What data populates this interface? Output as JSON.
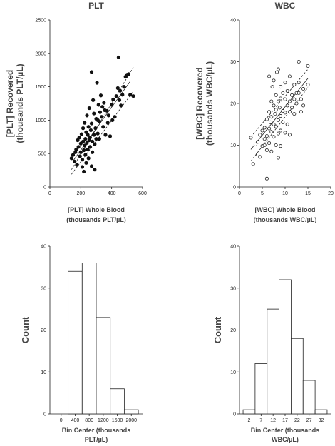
{
  "chart_data": [
    {
      "id": "plt-scatter",
      "type": "scatter",
      "title": "PLT",
      "xlabel": [
        "[PLT]  Whole Blood",
        "(thousands PLT/µL)"
      ],
      "ylabel": [
        "[PLT] Recovered",
        "(thousands PLT/µL)"
      ],
      "xlim": [
        0,
        600
      ],
      "ylim": [
        0,
        2500
      ],
      "xticks": [
        0,
        200,
        400,
        600
      ],
      "yticks": [
        0,
        500,
        1000,
        1500,
        2000,
        2500
      ],
      "marker": "filled",
      "points": [
        [
          140,
          430
        ],
        [
          150,
          480
        ],
        [
          160,
          380
        ],
        [
          165,
          520
        ],
        [
          170,
          560
        ],
        [
          175,
          330
        ],
        [
          180,
          700
        ],
        [
          185,
          600
        ],
        [
          190,
          740
        ],
        [
          195,
          460
        ],
        [
          200,
          650
        ],
        [
          200,
          520
        ],
        [
          205,
          790
        ],
        [
          210,
          410
        ],
        [
          210,
          300
        ],
        [
          215,
          880
        ],
        [
          215,
          680
        ],
        [
          220,
          230
        ],
        [
          220,
          550
        ],
        [
          225,
          620
        ],
        [
          225,
          960
        ],
        [
          230,
          720
        ],
        [
          230,
          480
        ],
        [
          235,
          820
        ],
        [
          235,
          360
        ],
        [
          240,
          660
        ],
        [
          240,
          1070
        ],
        [
          245,
          780
        ],
        [
          245,
          560
        ],
        [
          250,
          900
        ],
        [
          250,
          430
        ],
        [
          255,
          700
        ],
        [
          255,
          1180
        ],
        [
          260,
          740
        ],
        [
          260,
          600
        ],
        [
          265,
          850
        ],
        [
          270,
          310
        ],
        [
          270,
          950
        ],
        [
          275,
          680
        ],
        [
          275,
          520
        ],
        [
          280,
          1300
        ],
        [
          285,
          780
        ],
        [
          285,
          1100
        ],
        [
          290,
          260
        ],
        [
          290,
          640
        ],
        [
          295,
          880
        ],
        [
          300,
          1020
        ],
        [
          300,
          720
        ],
        [
          305,
          1560
        ],
        [
          310,
          800
        ],
        [
          310,
          1000
        ],
        [
          315,
          1230
        ],
        [
          320,
          720
        ],
        [
          320,
          980
        ],
        [
          325,
          1120
        ],
        [
          330,
          1370
        ],
        [
          335,
          1050
        ],
        [
          340,
          1200
        ],
        [
          345,
          900
        ],
        [
          350,
          1260
        ],
        [
          355,
          1150
        ],
        [
          360,
          780
        ],
        [
          370,
          1140
        ],
        [
          375,
          960
        ],
        [
          380,
          1070
        ],
        [
          390,
          760
        ],
        [
          400,
          1230
        ],
        [
          405,
          1000
        ],
        [
          410,
          1310
        ],
        [
          420,
          1050
        ],
        [
          430,
          1360
        ],
        [
          440,
          1480
        ],
        [
          445,
          1940
        ],
        [
          450,
          1300
        ],
        [
          455,
          1440
        ],
        [
          460,
          1220
        ],
        [
          470,
          1380
        ],
        [
          480,
          1500
        ],
        [
          490,
          1650
        ],
        [
          500,
          1680
        ],
        [
          510,
          1690
        ],
        [
          520,
          1380
        ],
        [
          540,
          1360
        ],
        [
          270,
          1720
        ]
      ],
      "fit": {
        "x": [
          150,
          520
        ],
        "y": [
          390,
          1580
        ]
      },
      "ci_upper": {
        "x": [
          140,
          540
        ],
        "y": [
          260,
          1790
        ]
      },
      "ci_lower": {
        "x": [
          140,
          540
        ],
        "y": [
          190,
          1430
        ]
      }
    },
    {
      "id": "wbc-scatter",
      "type": "scatter",
      "title": "WBC",
      "xlabel": [
        "[WBC] Whole Blood",
        "(thousands WBC/µL)"
      ],
      "ylabel": [
        "[WBC] Recovered",
        "(thousands WBC/µL)"
      ],
      "xlim": [
        0,
        20
      ],
      "ylim": [
        0,
        40
      ],
      "xticks": [
        0,
        5,
        10,
        15,
        20
      ],
      "yticks": [
        0,
        10,
        20,
        30,
        40
      ],
      "marker": "open",
      "points": [
        [
          2.5,
          11.8
        ],
        [
          3.0,
          5.5
        ],
        [
          3.5,
          10.2
        ],
        [
          4.0,
          10.8
        ],
        [
          4.0,
          7.8
        ],
        [
          4.5,
          12.5
        ],
        [
          4.5,
          7.2
        ],
        [
          5.0,
          13.5
        ],
        [
          5.0,
          9.8
        ],
        [
          5.5,
          14.2
        ],
        [
          5.5,
          11.5
        ],
        [
          5.5,
          10.0
        ],
        [
          6.0,
          16.2
        ],
        [
          6.0,
          12.2
        ],
        [
          6.0,
          8.8
        ],
        [
          6.0,
          2.0
        ],
        [
          6.5,
          18.0
        ],
        [
          6.5,
          14.0
        ],
        [
          6.5,
          10.5
        ],
        [
          6.5,
          26.5
        ],
        [
          6.8,
          15.5
        ],
        [
          7.0,
          20.5
        ],
        [
          7.0,
          16.8
        ],
        [
          7.0,
          13.2
        ],
        [
          7.0,
          8.5
        ],
        [
          7.2,
          24.0
        ],
        [
          7.5,
          19.5
        ],
        [
          7.5,
          15.0
        ],
        [
          7.5,
          12.0
        ],
        [
          7.5,
          25.5
        ],
        [
          7.8,
          17.5
        ],
        [
          8.0,
          22.0
        ],
        [
          8.0,
          18.5
        ],
        [
          8.0,
          14.5
        ],
        [
          8.0,
          10.0
        ],
        [
          8.2,
          27.5
        ],
        [
          8.5,
          20.5
        ],
        [
          8.5,
          16.0
        ],
        [
          8.5,
          12.8
        ],
        [
          8.5,
          7.0
        ],
        [
          8.5,
          28.2
        ],
        [
          8.8,
          19.0
        ],
        [
          9.0,
          24.0
        ],
        [
          9.0,
          21.2
        ],
        [
          9.0,
          17.0
        ],
        [
          9.0,
          13.5
        ],
        [
          9.0,
          9.8
        ],
        [
          9.5,
          22.5
        ],
        [
          9.5,
          18.2
        ],
        [
          9.5,
          15.5
        ],
        [
          10.0,
          25.0
        ],
        [
          10.0,
          21.0
        ],
        [
          10.0,
          17.8
        ],
        [
          10.0,
          13.0
        ],
        [
          10.5,
          23.0
        ],
        [
          10.5,
          19.5
        ],
        [
          10.5,
          15.0
        ],
        [
          11.0,
          20.5
        ],
        [
          11.0,
          18.0
        ],
        [
          11.0,
          12.5
        ],
        [
          11.0,
          26.5
        ],
        [
          11.5,
          22.0
        ],
        [
          11.5,
          19.0
        ],
        [
          12.0,
          24.5
        ],
        [
          12.0,
          21.0
        ],
        [
          12.0,
          17.5
        ],
        [
          12.5,
          22.5
        ],
        [
          12.5,
          20.0
        ],
        [
          13.0,
          25.0
        ],
        [
          13.0,
          22.5
        ],
        [
          13.0,
          30.0
        ],
        [
          13.5,
          18.0
        ],
        [
          13.5,
          21.0
        ],
        [
          14.0,
          19.5
        ],
        [
          14.0,
          23.5
        ],
        [
          15.0,
          29.0
        ],
        [
          15.0,
          24.5
        ]
      ],
      "fit": {
        "x": [
          2.5,
          15
        ],
        "y": [
          9.0,
          26.0
        ]
      },
      "ci_upper": {
        "x": [
          2.5,
          15
        ],
        "y": [
          12.0,
          28.2
        ]
      },
      "ci_lower": {
        "x": [
          2.5,
          15
        ],
        "y": [
          6.2,
          23.8
        ]
      }
    },
    {
      "id": "plt-hist",
      "type": "bar",
      "title": "",
      "xlabel": [
        "Bin Center (thousands",
        "PLT/µL)"
      ],
      "ylabel": [
        "Count"
      ],
      "categories": [
        "0",
        "400",
        "800",
        "1200",
        "1600",
        "2000"
      ],
      "bins": [
        0,
        400,
        800,
        1200,
        1600,
        2000
      ],
      "values": [
        0,
        34,
        36,
        23,
        6,
        1
      ],
      "ylim": [
        0,
        40
      ],
      "yticks": [
        0,
        10,
        20,
        30,
        40
      ]
    },
    {
      "id": "wbc-hist",
      "type": "bar",
      "title": "",
      "xlabel": [
        "Bin Center (thousands",
        "WBC/µL)"
      ],
      "ylabel": [
        "Count"
      ],
      "categories": [
        "2",
        "7",
        "12",
        "17",
        "22",
        "27",
        "32"
      ],
      "values": [
        1,
        12,
        25,
        32,
        18,
        8,
        1
      ],
      "ylim": [
        0,
        40
      ],
      "yticks": [
        0,
        10,
        20,
        30,
        40
      ]
    }
  ]
}
